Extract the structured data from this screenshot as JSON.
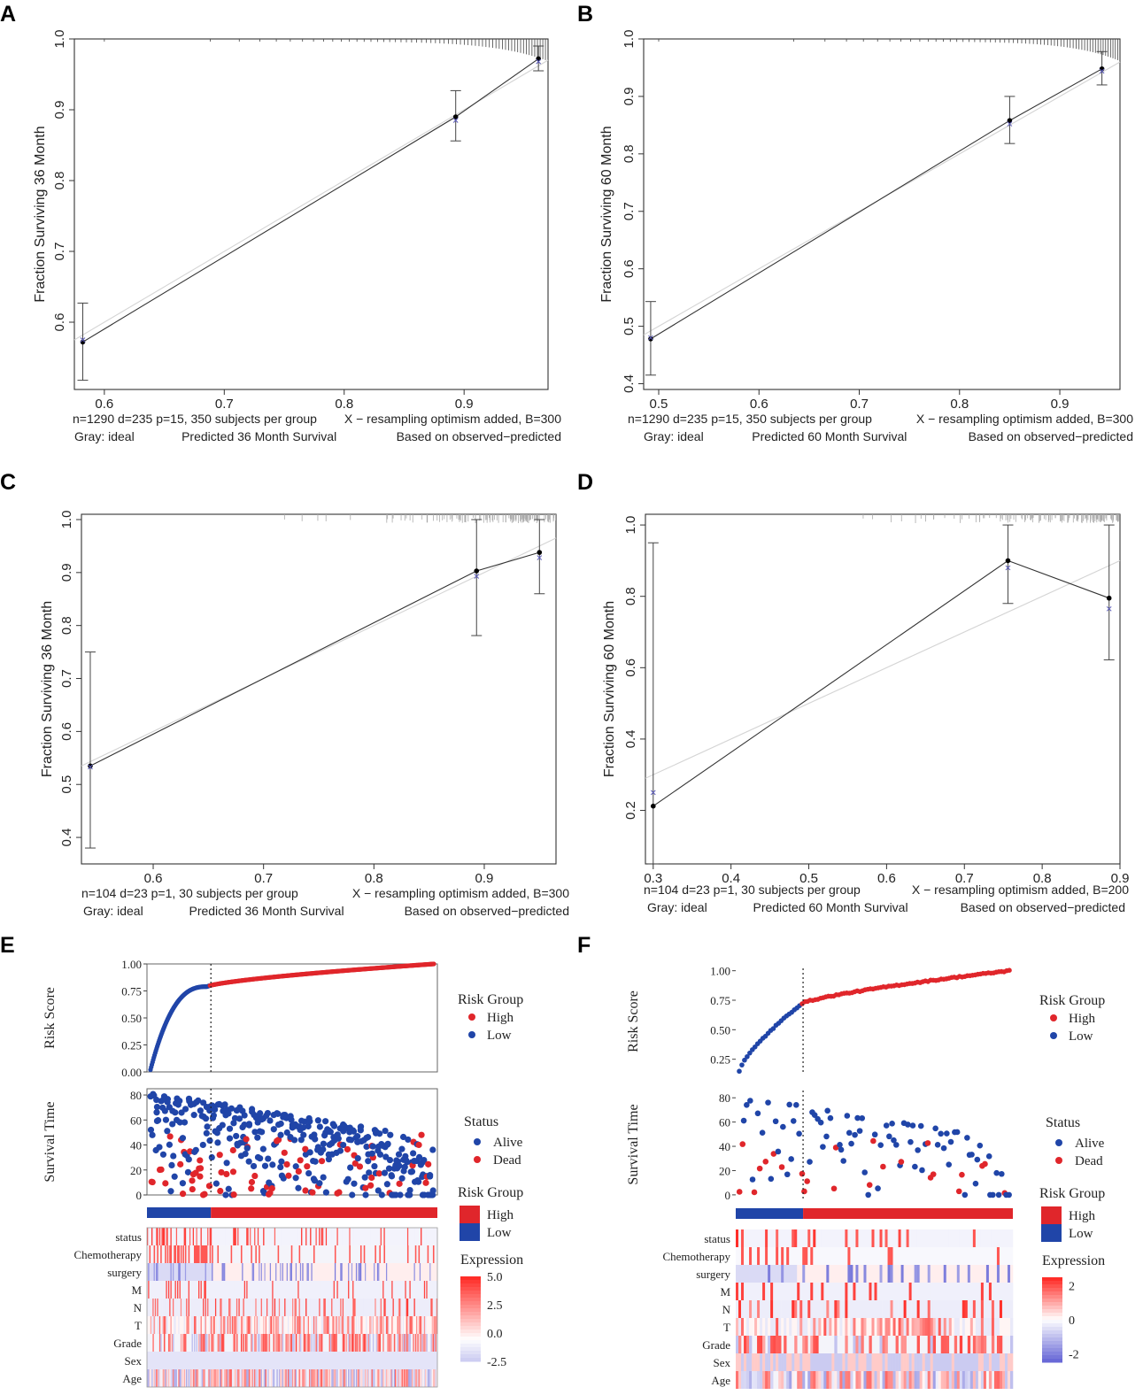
{
  "chart_data": [
    {
      "panel": "A",
      "type": "scatter",
      "subtype": "calibration",
      "ylabel": "Fraction Surviving 36 Month",
      "xlim": [
        0.575,
        0.97
      ],
      "ylim": [
        0.505,
        1.0
      ],
      "xticks": [
        "0.6",
        "0.7",
        "0.8",
        "0.9"
      ],
      "yticks": [
        "0.6",
        "0.7",
        "0.8",
        "0.9",
        "1.0"
      ],
      "points": [
        {
          "x": 0.582,
          "y": 0.572,
          "lo": 0.518,
          "hi": 0.627,
          "optimism": 0.575
        },
        {
          "x": 0.893,
          "y": 0.89,
          "lo": 0.856,
          "hi": 0.927,
          "optimism": 0.885
        },
        {
          "x": 0.962,
          "y": 0.972,
          "lo": 0.955,
          "hi": 0.99,
          "optimism": 0.968
        }
      ],
      "footer": {
        "left1": "n=1290 d=235 p=15, 350 subjects per group",
        "right1": "X − resampling optimism added, B=300",
        "left2": "Gray: ideal",
        "mid2": "Predicted  36 Month Survival",
        "right2": "Based on observed−predicted"
      }
    },
    {
      "panel": "B",
      "type": "scatter",
      "subtype": "calibration",
      "ylabel": "Fraction Surviving 60 Month",
      "xlim": [
        0.485,
        0.96
      ],
      "ylim": [
        0.39,
        1.0
      ],
      "xticks": [
        "0.5",
        "0.6",
        "0.7",
        "0.8",
        "0.9"
      ],
      "yticks": [
        "0.4",
        "0.5",
        "0.6",
        "0.7",
        "0.8",
        "0.9",
        "1.0"
      ],
      "points": [
        {
          "x": 0.492,
          "y": 0.478,
          "lo": 0.415,
          "hi": 0.543,
          "optimism": 0.48
        },
        {
          "x": 0.85,
          "y": 0.858,
          "lo": 0.818,
          "hi": 0.9,
          "optimism": 0.852
        },
        {
          "x": 0.942,
          "y": 0.948,
          "lo": 0.92,
          "hi": 0.978,
          "optimism": 0.944
        }
      ],
      "footer": {
        "left1": "n=1290 d=235 p=15, 350 subjects per group",
        "right1": "X − resampling optimism added, B=300",
        "left2": "Gray: ideal",
        "mid2": "Predicted  60 Month Survival",
        "right2": "Based on observed−predicted"
      }
    },
    {
      "panel": "C",
      "type": "scatter",
      "subtype": "calibration",
      "ylabel": "Fraction Surviving 36 Month",
      "xlim": [
        0.535,
        0.965
      ],
      "ylim": [
        0.35,
        1.01
      ],
      "xticks": [
        "0.6",
        "0.7",
        "0.8",
        "0.9"
      ],
      "yticks": [
        "0.4",
        "0.5",
        "0.6",
        "0.7",
        "0.8",
        "0.9",
        "1.0"
      ],
      "points": [
        {
          "x": 0.543,
          "y": 0.535,
          "lo": 0.38,
          "hi": 0.75,
          "optimism": 0.533
        },
        {
          "x": 0.893,
          "y": 0.903,
          "lo": 0.781,
          "hi": 1.0,
          "optimism": 0.893
        },
        {
          "x": 0.95,
          "y": 0.938,
          "lo": 0.86,
          "hi": 1.0,
          "optimism": 0.928
        }
      ],
      "footer": {
        "left1": "n=104 d=23 p=1, 30 subjects per group",
        "right1": "X − resampling optimism added, B=300",
        "left2": "Gray: ideal",
        "mid2": "Predicted  36 Month Survival",
        "right2": "Based on observed−predicted"
      }
    },
    {
      "panel": "D",
      "type": "scatter",
      "subtype": "calibration",
      "ylabel": "Fraction Surviving 60 Month",
      "xlim": [
        0.29,
        0.9
      ],
      "ylim": [
        0.05,
        1.03
      ],
      "xticks": [
        "0.3",
        "0.4",
        "0.5",
        "0.6",
        "0.7",
        "0.8",
        "0.9"
      ],
      "yticks": [
        "0.2",
        "0.4",
        "0.6",
        "0.8",
        "1.0"
      ],
      "points": [
        {
          "x": 0.3,
          "y": 0.212,
          "lo": 0.05,
          "hi": 0.95,
          "optimism": 0.25
        },
        {
          "x": 0.756,
          "y": 0.9,
          "lo": 0.78,
          "hi": 1.0,
          "optimism": 0.88
        },
        {
          "x": 0.886,
          "y": 0.795,
          "lo": 0.622,
          "hi": 1.0,
          "optimism": 0.765
        }
      ],
      "footer": {
        "left1": "n=104 d=23 p=1, 30 subjects per group",
        "right1": "X − resampling optimism added, B=200",
        "left2": "Gray: ideal",
        "mid2": "Predicted  60 Month Survival",
        "right2": "Based on observed−predicted"
      }
    },
    {
      "panel": "E",
      "type": "scatter",
      "subtype": "risk-score-plot",
      "n_patients": 1290,
      "cutoff_index": 270,
      "risk_score_axis": {
        "label": "Risk Score",
        "ylim": [
          0,
          1
        ],
        "ticks": [
          "0.00",
          "0.25",
          "0.50",
          "0.75",
          "1.00"
        ]
      },
      "survival_axis": {
        "label": "Survival Time",
        "ylim": [
          0,
          85
        ],
        "ticks": [
          "0",
          "20",
          "40",
          "60",
          "80"
        ]
      },
      "risk_legend": {
        "title": "Risk Group",
        "items": [
          "High",
          "Low"
        ]
      },
      "status_legend": {
        "title": "Status",
        "items": [
          "Alive",
          "Dead"
        ]
      },
      "bar_legend": {
        "title": "Risk Group",
        "items": [
          "High",
          "Low"
        ]
      },
      "expression_legend": {
        "title": "Expression",
        "ticks": [
          "5.0",
          "2.5",
          "0.0",
          "-2.5"
        ],
        "range": [
          -2.5,
          5
        ]
      },
      "heatmap_rows": [
        "status",
        "Chemotherapy",
        "surgery",
        "M",
        "N",
        "T",
        "Grade",
        "Sex",
        "Age"
      ]
    },
    {
      "panel": "F",
      "type": "scatter",
      "subtype": "risk-score-plot",
      "n_patients": 104,
      "cutoff_index": 24,
      "risk_score_axis": {
        "label": "Risk Score",
        "ylim": [
          0.12,
          1.02
        ],
        "ticks": [
          "0.25",
          "0.50",
          "0.75",
          "1.00"
        ]
      },
      "survival_axis": {
        "label": "Survival Time",
        "ylim": [
          -3,
          86
        ],
        "ticks": [
          "0",
          "20",
          "40",
          "60",
          "80"
        ]
      },
      "risk_legend": {
        "title": "Risk Group",
        "items": [
          "High",
          "Low"
        ]
      },
      "status_legend": {
        "title": "Status",
        "items": [
          "Alive",
          "Dead"
        ]
      },
      "bar_legend": {
        "title": "Risk Group",
        "items": [
          "High",
          "Low"
        ]
      },
      "expression_legend": {
        "title": "Expression",
        "ticks": [
          "2",
          "0",
          "-2"
        ],
        "range": [
          -2.5,
          2.5
        ]
      },
      "heatmap_rows": [
        "status",
        "Chemotherapy",
        "surgery",
        "M",
        "N",
        "T",
        "Grade",
        "Sex",
        "Age"
      ]
    }
  ],
  "colors": {
    "high": "#e0262b",
    "low": "#2045a8",
    "axis": "#333333",
    "ideal": "#cccccc"
  }
}
